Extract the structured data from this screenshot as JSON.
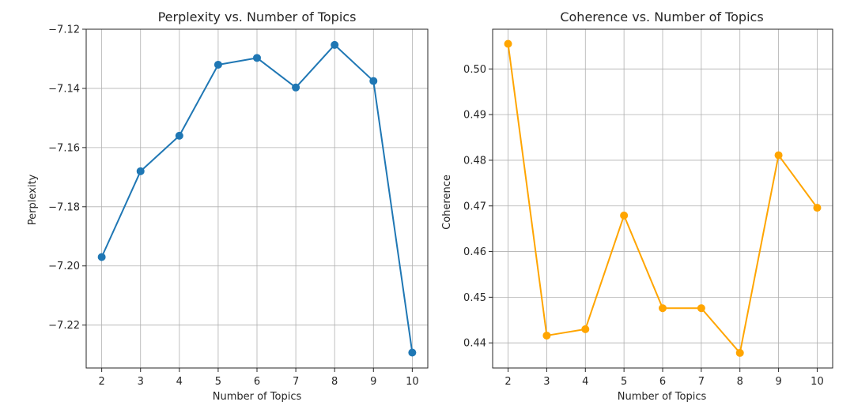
{
  "chart_data": [
    {
      "type": "line",
      "title": "Perplexity vs. Number of Topics",
      "xlabel": "Number of Topics",
      "ylabel": "Perplexity",
      "x": [
        2,
        3,
        4,
        5,
        6,
        7,
        8,
        9,
        10
      ],
      "series": [
        {
          "values": [
            -7.197,
            -7.168,
            -7.156,
            -7.132,
            -7.1297,
            -7.1397,
            -7.1253,
            -7.1375,
            -7.2293
          ],
          "color": "#1f77b4"
        }
      ],
      "xlim": [
        1.6,
        10.4
      ],
      "ylim": [
        -7.2345,
        -7.12
      ],
      "xticks": [
        2,
        3,
        4,
        5,
        6,
        7,
        8,
        9,
        10
      ],
      "yticks": [
        -7.22,
        -7.2,
        -7.18,
        -7.16,
        -7.14,
        -7.12
      ],
      "ytick_labels": [
        "−7.22",
        "−7.20",
        "−7.18",
        "−7.16",
        "−7.14",
        "−7.12"
      ],
      "grid": true,
      "marker": "circle"
    },
    {
      "type": "line",
      "title": "Coherence vs. Number of Topics",
      "xlabel": "Number of Topics",
      "ylabel": "Coherence",
      "x": [
        2,
        3,
        4,
        5,
        6,
        7,
        8,
        9,
        10
      ],
      "series": [
        {
          "values": [
            0.5055,
            0.4416,
            0.443,
            0.4679,
            0.4476,
            0.4476,
            0.4378,
            0.4811,
            0.4696
          ],
          "color": "#ffa500"
        }
      ],
      "xlim": [
        1.6,
        10.4
      ],
      "ylim": [
        0.4345,
        0.5087
      ],
      "xticks": [
        2,
        3,
        4,
        5,
        6,
        7,
        8,
        9,
        10
      ],
      "yticks": [
        0.44,
        0.45,
        0.46,
        0.47,
        0.48,
        0.49,
        0.5
      ],
      "ytick_labels": [
        "0.44",
        "0.45",
        "0.46",
        "0.47",
        "0.48",
        "0.49",
        "0.50"
      ],
      "grid": true,
      "marker": "circle"
    }
  ]
}
